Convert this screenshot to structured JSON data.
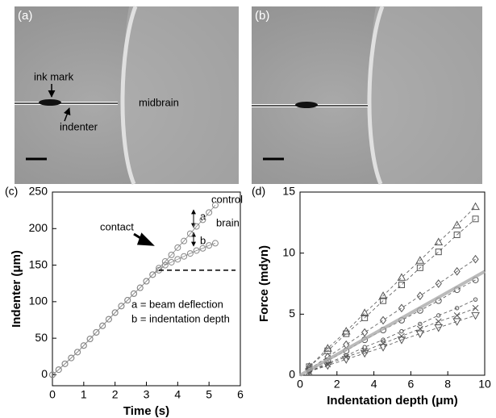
{
  "figure": {
    "panels": {
      "a": "(a)",
      "b": "(b)"
    },
    "annotations": {
      "ink_mark": "ink mark",
      "indenter": "indenter",
      "midbrain": "midbrain"
    }
  },
  "chart_data": [
    {
      "type": "line",
      "panel": "(c)",
      "x_label": "Time (s)",
      "y_label": "Indenter (μm)",
      "xlim": [
        0,
        6
      ],
      "xticks": [
        0,
        1,
        2,
        3,
        4,
        5,
        6
      ],
      "ylim": [
        -15,
        250
      ],
      "yticks": [
        0,
        50,
        100,
        150,
        200,
        250
      ],
      "annotations": {
        "control": "control",
        "brain": "brain",
        "contact": "contact",
        "a": "a",
        "b": "b",
        "legend_a": "a = beam deflection",
        "legend_b": "b = indentation depth"
      },
      "series": [
        {
          "color": "#888888",
          "marker": "circle",
          "x": [
            0,
            0.2,
            0.4,
            0.6,
            0.8,
            1.0,
            1.2,
            1.4,
            1.6,
            1.8,
            2.0,
            2.2,
            2.4,
            2.6,
            2.8,
            3.0,
            3.2,
            3.4,
            3.6,
            3.8,
            4.0,
            4.2,
            4.4,
            4.6,
            4.8,
            5.0,
            5.2
          ],
          "values": [
            0,
            7,
            15,
            23,
            31,
            40,
            49,
            58,
            67,
            76,
            85,
            94,
            102,
            111,
            119,
            128,
            137,
            146,
            155,
            164,
            174,
            183,
            193,
            203,
            212,
            222,
            232
          ]
        },
        {
          "color": "#888888",
          "marker": "circle",
          "x": [
            0,
            0.2,
            0.4,
            0.6,
            0.8,
            1.0,
            1.2,
            1.4,
            1.6,
            1.8,
            2.0,
            2.2,
            2.4,
            2.6,
            2.8,
            3.0,
            3.2,
            3.4,
            3.6,
            3.8,
            4.0,
            4.2,
            4.4,
            4.6,
            4.8,
            5.0,
            5.2
          ],
          "values": [
            0,
            7,
            15,
            23,
            31,
            40,
            49,
            58,
            67,
            76,
            85,
            94,
            102,
            111,
            119,
            128,
            137,
            143,
            150,
            154,
            158,
            162,
            166,
            170,
            173,
            177,
            180
          ]
        }
      ]
    },
    {
      "type": "scatter",
      "panel": "(d)",
      "x_label": "Indentation depth (μm)",
      "y_label": "Force (mdyn)",
      "xlim": [
        0,
        10
      ],
      "xticks": [
        0,
        2,
        4,
        6,
        8,
        10
      ],
      "ylim": [
        0,
        15
      ],
      "yticks": [
        0,
        5,
        10,
        15
      ],
      "series": [
        {
          "color": "#555555",
          "marker": "triangle-up",
          "x": [
            0.5,
            1.5,
            2.5,
            3.5,
            4.5,
            5.5,
            6.5,
            7.5,
            8.5,
            9.5
          ],
          "values": [
            0.7,
            2.2,
            3.6,
            5.1,
            6.5,
            8.0,
            9.4,
            10.9,
            12.3,
            13.8
          ]
        },
        {
          "color": "#555555",
          "marker": "square",
          "x": [
            0.5,
            1.5,
            2.5,
            3.5,
            4.5,
            5.5,
            6.5,
            7.5,
            8.5,
            9.5
          ],
          "values": [
            0.7,
            2.0,
            3.4,
            4.7,
            6.1,
            7.4,
            8.8,
            10.1,
            11.5,
            12.8
          ]
        },
        {
          "color": "#555555",
          "marker": "diamond",
          "x": [
            0.5,
            1.5,
            2.5,
            3.5,
            4.5,
            5.5,
            6.5,
            7.5,
            8.5,
            9.5
          ],
          "values": [
            0.5,
            1.5,
            2.5,
            3.5,
            4.5,
            5.5,
            6.5,
            7.5,
            8.5,
            9.5
          ]
        },
        {
          "color": "#555555",
          "marker": "circle",
          "x": [
            0.5,
            1.5,
            2.5,
            3.5,
            4.5,
            5.5,
            6.5,
            7.5,
            8.5,
            9.5
          ],
          "values": [
            0.4,
            1.2,
            2.0,
            2.9,
            3.7,
            4.5,
            5.3,
            6.1,
            7.0,
            7.8
          ]
        },
        {
          "color": "#555555",
          "marker": "small-circle",
          "x": [
            0.5,
            1.5,
            2.5,
            3.5,
            4.5,
            5.5,
            6.5,
            7.5,
            8.5,
            9.5
          ],
          "values": [
            0.3,
            1.0,
            1.6,
            2.3,
            2.9,
            3.6,
            4.2,
            4.9,
            5.5,
            6.2
          ]
        },
        {
          "color": "#555555",
          "marker": "cross",
          "x": [
            0.5,
            1.5,
            2.5,
            3.5,
            4.5,
            5.5,
            6.5,
            7.5,
            8.5,
            9.5
          ],
          "values": [
            0.3,
            0.9,
            1.5,
            2.0,
            2.6,
            3.2,
            3.8,
            4.4,
            4.9,
            5.5
          ]
        },
        {
          "color": "#555555",
          "marker": "triangle-down",
          "x": [
            0.5,
            1.5,
            2.5,
            3.5,
            4.5,
            5.5,
            6.5,
            7.5,
            8.5,
            9.5
          ],
          "values": [
            0.3,
            0.8,
            1.3,
            1.8,
            2.3,
            2.9,
            3.4,
            3.9,
            4.4,
            4.9
          ]
        },
        {
          "color": "#aaaaaa",
          "marker": "none",
          "x": [
            0,
            10
          ],
          "values": [
            0,
            8.5
          ]
        }
      ]
    }
  ]
}
